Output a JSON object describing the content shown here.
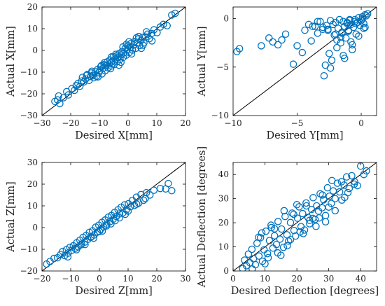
{
  "colors": {
    "marker": "#0072BD",
    "reference_line": "#000000",
    "axes": "#000000"
  },
  "chart_data": [
    {
      "type": "scatter",
      "xlabel": "Desired X[mm]",
      "ylabel": "Actual X[mm]",
      "xlim": [
        -30,
        20
      ],
      "ylim": [
        -30,
        20
      ],
      "xticks": [
        -30,
        -20,
        -10,
        0,
        10,
        20
      ],
      "yticks": [
        -30,
        -20,
        -10,
        0,
        10,
        20
      ],
      "reference_line": "y = x",
      "grid": false,
      "x": [
        -25.5,
        -24.6,
        -23.8,
        -24.2,
        -22.5,
        -21.4,
        -20.8,
        -19.6,
        -18.7,
        -18.1,
        -17.5,
        -16.8,
        -16.2,
        -15.9,
        -15.4,
        -14.8,
        -14.2,
        -13.6,
        -13.1,
        -12.8,
        -12.3,
        -11.9,
        -11.4,
        -11.0,
        -10.6,
        -10.2,
        -9.8,
        -9.5,
        -9.1,
        -8.7,
        -8.4,
        -8.0,
        -7.7,
        -7.3,
        -7.0,
        -6.6,
        -6.3,
        -5.9,
        -5.6,
        -5.2,
        -4.9,
        -4.5,
        -4.2,
        -3.8,
        -3.5,
        -3.1,
        -2.8,
        -2.4,
        -2.1,
        -1.7,
        -1.4,
        -1.0,
        -0.7,
        -0.3,
        0.0,
        0.4,
        0.8,
        1.1,
        1.5,
        1.9,
        2.3,
        2.7,
        3.1,
        3.6,
        4.0,
        4.5,
        5.0,
        5.5,
        6.1,
        6.8,
        7.4,
        8.2,
        9.0,
        10.1,
        11.2,
        12.3,
        13.6,
        15.2,
        16.4,
        -12.6,
        -10.5,
        -8.2,
        -6.1,
        -4.3,
        -2.5,
        -0.6,
        1.2,
        2.9,
        4.6,
        6.4,
        8.3,
        0.3,
        -1.8,
        3.7,
        -5.8,
        -9.3,
        -14.5,
        5.2,
        -3.2
      ],
      "y": [
        -23.5,
        -22.8,
        -24.5,
        -21.0,
        -21.8,
        -19.0,
        -20.5,
        -17.6,
        -18.4,
        -16.2,
        -15.3,
        -16.5,
        -14.1,
        -12.4,
        -14.5,
        -13.2,
        -11.1,
        -13.8,
        -12.0,
        -10.4,
        -11.5,
        -12.6,
        -9.8,
        -11.9,
        -8.7,
        -10.3,
        -9.1,
        -7.4,
        -10.8,
        -8.2,
        -6.5,
        -9.4,
        -7.1,
        -5.3,
        -8.0,
        -6.2,
        -4.4,
        -7.2,
        -5.1,
        -3.0,
        -6.5,
        -4.0,
        -2.6,
        -5.2,
        -3.3,
        -1.4,
        -4.1,
        -2.0,
        -0.5,
        -3.2,
        -1.1,
        1.0,
        -2.2,
        0.3,
        2.2,
        -1.0,
        1.4,
        3.3,
        0.2,
        2.5,
        4.1,
        1.0,
        3.4,
        5.3,
        2.2,
        4.6,
        6.0,
        3.5,
        6.2,
        7.5,
        5.4,
        7.8,
        9.5,
        8.2,
        10.8,
        12.0,
        11.4,
        16.3,
        17.1,
        -9.6,
        -12.2,
        -5.6,
        -8.4,
        -1.8,
        -5.5,
        2.8,
        -1.6,
        5.8,
        1.0,
        8.6,
        4.4,
        4.0,
        1.6,
        6.4,
        -3.0,
        -7.0,
        -11.5,
        2.4,
        -6.8
      ]
    },
    {
      "type": "scatter",
      "xlabel": "Desired Y[mm]",
      "ylabel": "Actual Y[mm]",
      "xlim": [
        -10,
        1.2
      ],
      "ylim": [
        -10,
        1.2
      ],
      "xticks": [
        -10,
        -5,
        0
      ],
      "yticks": [
        -10,
        -5,
        0
      ],
      "reference_line": "y = x",
      "grid": false,
      "x": [
        -9.7,
        -9.5,
        -7.8,
        -7.2,
        -6.9,
        -6.5,
        -6.2,
        -5.9,
        -5.3,
        -5.0,
        -4.6,
        -4.4,
        -4.1,
        -3.9,
        -3.6,
        -3.4,
        -3.2,
        -3.0,
        -2.8,
        -2.6,
        -2.4,
        -2.3,
        -2.1,
        -2.0,
        -1.9,
        -1.8,
        -1.7,
        -1.6,
        -1.5,
        -1.4,
        -1.3,
        -1.2,
        -1.1,
        -1.0,
        -0.9,
        -0.8,
        -0.7,
        -0.6,
        -0.5,
        -0.4,
        -0.3,
        -0.2,
        -0.1,
        0.0,
        0.1,
        0.2,
        0.3,
        0.4,
        0.5,
        -3.4,
        -2.9,
        -2.5,
        -2.2,
        -1.9,
        -1.6,
        -1.3,
        -1.0,
        -0.7,
        -0.4,
        -0.2,
        0.1,
        0.3,
        -3.0,
        -2.7,
        -2.4,
        -1.5,
        -0.8,
        -1.1,
        -3.8,
        -2.0,
        -0.5,
        0.2,
        -1.4,
        -2.6,
        -0.9
      ],
      "y": [
        -3.4,
        -3.1,
        -2.8,
        -2.0,
        -2.4,
        -2.7,
        -2.2,
        -1.6,
        -4.7,
        -2.8,
        -3.5,
        -1.2,
        -0.6,
        -2.3,
        -0.8,
        -1.5,
        -0.3,
        -0.9,
        -4.8,
        -1.1,
        -0.2,
        -4.3,
        -1.7,
        -0.4,
        -3.0,
        -1.0,
        -0.1,
        -2.5,
        -1.4,
        -0.3,
        -0.8,
        -2.0,
        -0.5,
        -1.2,
        -0.2,
        -0.6,
        -3.2,
        -0.9,
        -0.1,
        -1.6,
        -0.4,
        0.1,
        -0.7,
        -0.2,
        0.2,
        -1.0,
        0.4,
        0.3,
        0.5,
        -0.3,
        -5.9,
        -3.6,
        -0.6,
        -2.2,
        -1.9,
        -4.1,
        -1.3,
        -2.7,
        -0.5,
        -1.8,
        0.0,
        -0.9,
        -1.1,
        -0.7,
        -5.1,
        -1.5,
        -2.4,
        -0.4,
        -0.8,
        -1.6,
        -0.3,
        -0.5,
        -3.8,
        -1.2,
        -0.1
      ],
      "xticks_note": ""
    },
    {
      "type": "scatter",
      "xlabel": "Desired Z[mm]",
      "ylabel": "Actual Z[mm]",
      "xlim": [
        -20,
        30
      ],
      "ylim": [
        -20,
        30
      ],
      "xticks": [
        -20,
        -10,
        0,
        10,
        20,
        30
      ],
      "yticks": [
        -20,
        -10,
        0,
        10,
        20,
        30
      ],
      "reference_line": "y = x",
      "grid": false,
      "x": [
        -18.4,
        -17.2,
        -15.8,
        -14.6,
        -13.5,
        -12.8,
        -12.1,
        -11.5,
        -10.9,
        -10.3,
        -9.7,
        -9.1,
        -8.5,
        -7.9,
        -7.4,
        -6.8,
        -6.2,
        -5.7,
        -5.1,
        -4.6,
        -4.0,
        -3.5,
        -2.9,
        -2.4,
        -1.8,
        -1.3,
        -0.7,
        -0.2,
        0.4,
        0.9,
        1.5,
        2.0,
        2.6,
        3.1,
        3.7,
        4.2,
        4.8,
        5.3,
        5.9,
        6.5,
        7.0,
        7.6,
        8.2,
        8.8,
        9.4,
        10.1,
        10.8,
        11.5,
        12.2,
        12.9,
        13.7,
        14.5,
        15.4,
        16.4,
        17.6,
        19.0,
        21.2,
        23.1,
        24.0,
        25.2,
        -11.0,
        -8.0,
        -5.0,
        -2.0,
        1.0,
        4.0,
        7.0,
        10.0,
        13.0,
        16.0,
        -6.5,
        2.5,
        9.0,
        0.0,
        -3.0,
        5.5
      ],
      "y": [
        -16.8,
        -15.6,
        -14.2,
        -13.9,
        -12.4,
        -11.0,
        -12.9,
        -10.2,
        -11.8,
        -9.1,
        -10.5,
        -8.4,
        -9.6,
        -7.0,
        -8.9,
        -5.8,
        -7.6,
        -4.5,
        -6.7,
        -3.6,
        -5.4,
        -2.2,
        -4.2,
        -1.5,
        -3.4,
        0.2,
        -2.1,
        1.1,
        -0.8,
        2.4,
        0.3,
        3.5,
        1.6,
        4.8,
        2.7,
        5.6,
        3.9,
        7.0,
        5.1,
        8.2,
        6.3,
        9.4,
        6.8,
        10.5,
        8.2,
        11.0,
        9.6,
        12.5,
        10.2,
        14.0,
        11.3,
        15.2,
        12.6,
        16.1,
        15.0,
        17.2,
        18.0,
        17.8,
        20.3,
        17.0,
        -13.5,
        -10.2,
        -7.8,
        -4.9,
        -1.6,
        1.7,
        4.5,
        7.6,
        10.8,
        13.4,
        -8.0,
        0.8,
        6.1,
        -1.8,
        -4.5,
        3.2
      ]
    },
    {
      "type": "scatter",
      "xlabel": "Desired Deflection [degrees]",
      "ylabel": "Actual Deflection [degrees]",
      "xlim": [
        0,
        45
      ],
      "ylim": [
        0,
        45
      ],
      "xticks": [
        0,
        10,
        20,
        30,
        40
      ],
      "yticks": [
        0,
        10,
        20,
        30,
        40
      ],
      "reference_line": "y = x",
      "grid": false,
      "x": [
        3.0,
        3.6,
        4.2,
        4.8,
        5.3,
        5.9,
        6.4,
        7.0,
        7.5,
        8.1,
        8.6,
        9.2,
        9.7,
        10.3,
        10.8,
        11.4,
        11.9,
        12.5,
        13.0,
        13.6,
        14.1,
        14.7,
        15.2,
        15.8,
        16.3,
        16.9,
        17.4,
        18.0,
        18.5,
        19.1,
        19.6,
        20.2,
        20.7,
        21.3,
        21.8,
        22.4,
        22.9,
        23.5,
        24.0,
        24.6,
        25.1,
        25.7,
        26.2,
        26.8,
        27.3,
        27.9,
        28.4,
        29.0,
        29.6,
        30.2,
        30.8,
        31.4,
        32.0,
        32.7,
        33.4,
        34.1,
        34.8,
        35.6,
        36.4,
        37.2,
        38.1,
        39.0,
        40.0,
        41.0,
        41.8,
        6.0,
        8.0,
        10.0,
        12.0,
        14.0,
        16.0,
        18.0,
        20.0,
        22.0,
        24.0,
        26.0,
        28.0,
        30.0,
        32.0,
        34.0,
        36.0,
        38.0,
        11.0,
        13.0,
        17.0,
        19.0,
        23.0,
        27.0,
        31.0,
        35.0,
        9.0,
        15.0,
        21.0,
        25.0,
        29.0
      ],
      "y": [
        1.0,
        4.5,
        2.2,
        7.0,
        3.4,
        9.0,
        5.1,
        2.6,
        11.5,
        6.2,
        13.8,
        4.0,
        8.8,
        16.5,
        7.2,
        12.6,
        19.0,
        9.5,
        14.6,
        11.0,
        20.5,
        13.2,
        17.4,
        9.8,
        22.6,
        15.0,
        12.4,
        20.1,
        24.0,
        16.8,
        14.5,
        21.9,
        26.6,
        18.4,
        23.8,
        17.0,
        28.2,
        22.2,
        19.6,
        25.5,
        30.4,
        21.4,
        27.0,
        24.8,
        32.0,
        26.2,
        29.5,
        23.0,
        34.5,
        31.0,
        28.0,
        33.2,
        30.0,
        36.4,
        32.8,
        29.4,
        35.6,
        39.0,
        34.2,
        39.5,
        37.0,
        35.4,
        43.5,
        40.0,
        41.5,
        0.8,
        14.0,
        3.0,
        18.0,
        7.5,
        25.0,
        13.0,
        27.5,
        15.5,
        21.0,
        18.5,
        31.5,
        26.5,
        25.0,
        37.0,
        32.5,
        36.0,
        5.5,
        17.5,
        10.5,
        23.5,
        27.0,
        22.0,
        37.5,
        30.5,
        15.8,
        6.5,
        16.2,
        21.8,
        20.4
      ]
    }
  ]
}
